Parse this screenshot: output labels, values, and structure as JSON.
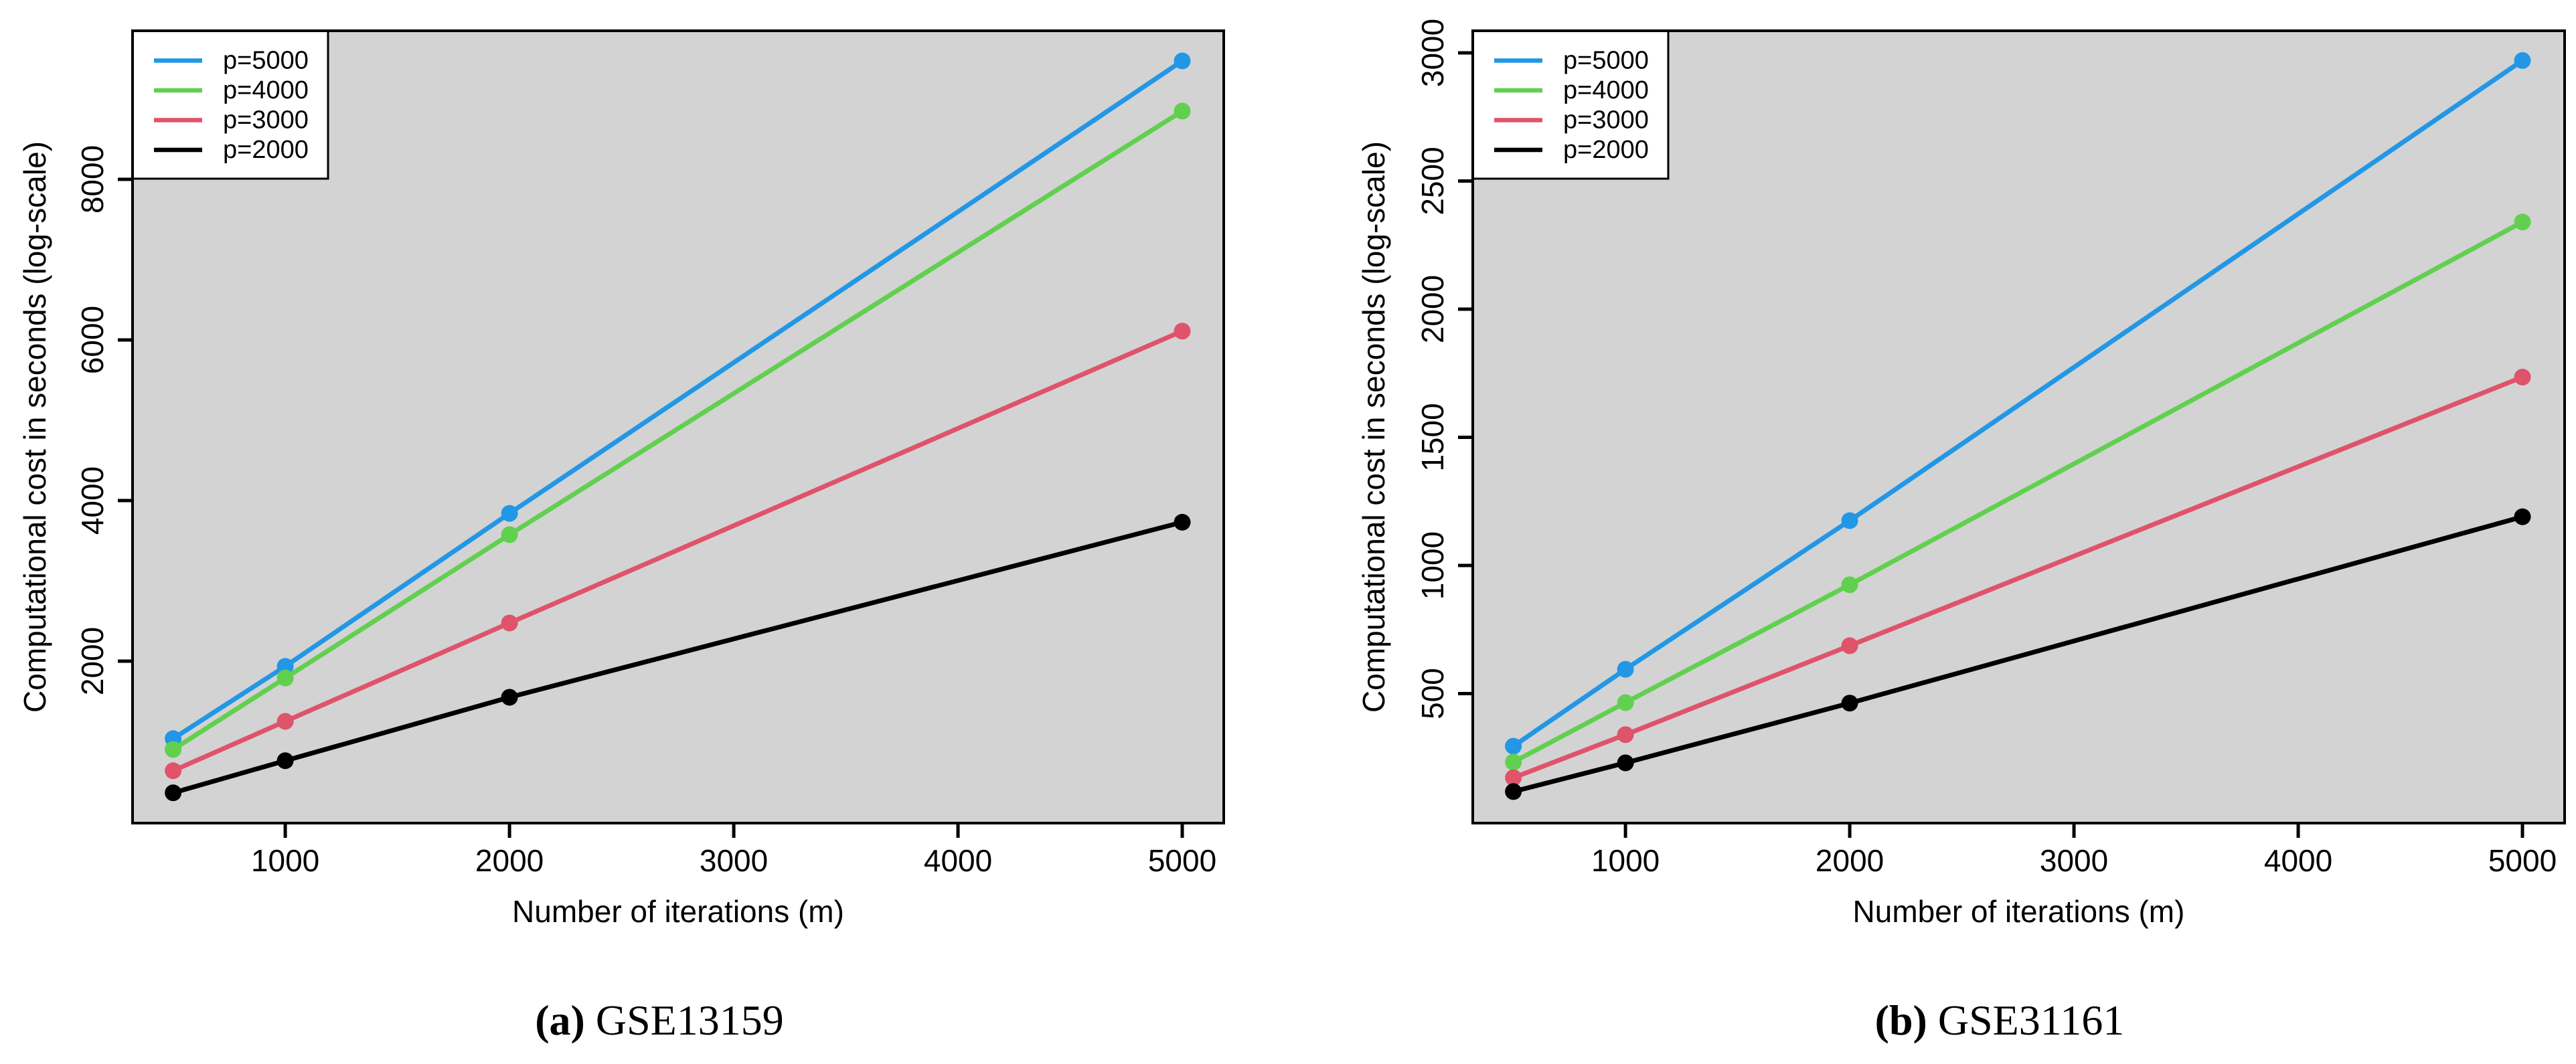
{
  "figure_bg": "#ffffff",
  "palette": {
    "blue": "#2297e6",
    "green": "#61d04f",
    "red": "#df536b",
    "black": "#000000",
    "panel_bg": "#d3d3d3",
    "legend_bg": "#ffffff",
    "axis_color": "#000000"
  },
  "chart_data": [
    {
      "panel": "a",
      "type": "line",
      "title": "(a) GSE13159",
      "caption_label": "(a)",
      "caption_text": "GSE13159",
      "xlabel": "Number of iterations (m)",
      "ylabel": "Computational cost in seconds (log-scale)",
      "x": [
        500,
        1000,
        2000,
        5000
      ],
      "xticks": [
        1000,
        2000,
        3000,
        4000,
        5000
      ],
      "yticks": [
        2000,
        4000,
        6000,
        8000
      ],
      "xlim": [
        319,
        5185
      ],
      "ylim": [
        -17,
        9850
      ],
      "grid": false,
      "legend_position": "top-left",
      "series": [
        {
          "name": "p=5000",
          "color": "#2297e6",
          "values": [
            1035,
            1935,
            3840,
            9475
          ]
        },
        {
          "name": "p=4000",
          "color": "#61d04f",
          "values": [
            900,
            1790,
            3575,
            8850
          ]
        },
        {
          "name": "p=3000",
          "color": "#df536b",
          "values": [
            635,
            1250,
            2475,
            6110
          ]
        },
        {
          "name": "p=2000",
          "color": "#000000",
          "values": [
            360,
            760,
            1550,
            3730
          ]
        }
      ]
    },
    {
      "panel": "b",
      "type": "line",
      "title": "(b) GSE31161",
      "caption_label": "(b)",
      "caption_text": "GSE31161",
      "xlabel": "Number of iterations (m)",
      "ylabel": "Computational cost in seconds (log-scale)",
      "x": [
        500,
        1000,
        2000,
        5000
      ],
      "xticks": [
        1000,
        2000,
        3000,
        4000,
        5000
      ],
      "yticks": [
        500,
        1000,
        1500,
        2000,
        2500,
        3000
      ],
      "xlim": [
        319,
        5188
      ],
      "ylim": [
        -5,
        3086
      ],
      "grid": false,
      "legend_position": "top-left",
      "series": [
        {
          "name": "p=5000",
          "color": "#2297e6",
          "values": [
            295,
            595,
            1175,
            2970
          ]
        },
        {
          "name": "p=4000",
          "color": "#61d04f",
          "values": [
            233,
            465,
            925,
            2340
          ]
        },
        {
          "name": "p=3000",
          "color": "#df536b",
          "values": [
            172,
            340,
            687,
            1735
          ]
        },
        {
          "name": "p=2000",
          "color": "#000000",
          "values": [
            118,
            230,
            463,
            1190
          ]
        }
      ]
    }
  ]
}
